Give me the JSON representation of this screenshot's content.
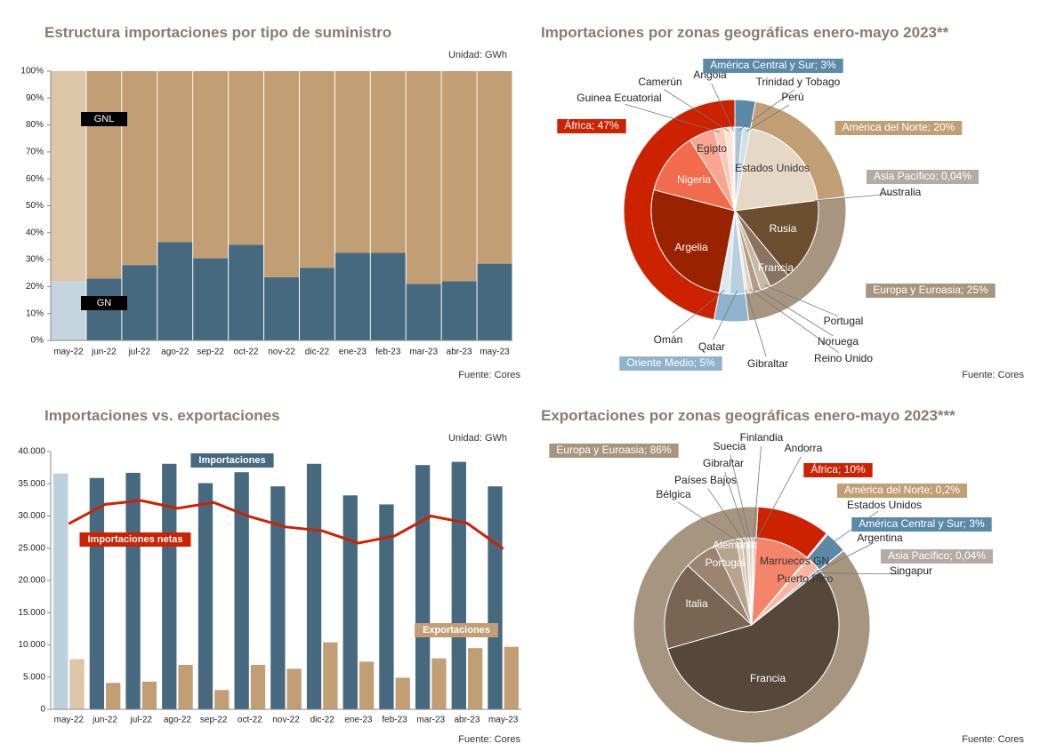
{
  "chart_data": [
    {
      "type": "bar",
      "stacked": true,
      "title": "Estructura importaciones por tipo de suministro",
      "unit": "Unidad: GWh",
      "source": "Fuente: Cores",
      "categories": [
        "may-22",
        "jun-22",
        "jul-22",
        "ago-22",
        "sep-22",
        "oct-22",
        "nov-22",
        "dic-22",
        "ene-23",
        "feb-23",
        "mar-23",
        "abr-23",
        "may-23"
      ],
      "series": [
        {
          "name": "GN",
          "color": "#46697f",
          "first_color": "#c5d5df",
          "values": [
            22,
            23,
            28,
            36.5,
            30.5,
            35.5,
            23.5,
            27,
            32.5,
            32.5,
            21,
            22,
            28.5
          ]
        },
        {
          "name": "GNL",
          "color": "#c29e75",
          "first_color": "#dcc5a8",
          "values": [
            78,
            77,
            72,
            63.5,
            69.5,
            64.5,
            76.5,
            73,
            67.5,
            67.5,
            79,
            78,
            71.5
          ]
        }
      ],
      "ylim": [
        0,
        100
      ],
      "yticks": [
        {
          "value": 0,
          "label": "0%"
        },
        {
          "value": 10,
          "label": "10%"
        },
        {
          "value": 20,
          "label": "20%"
        },
        {
          "value": 30,
          "label": "30%"
        },
        {
          "value": 40,
          "label": "40%"
        },
        {
          "value": 50,
          "label": "50%"
        },
        {
          "value": 60,
          "label": "60%"
        },
        {
          "value": 70,
          "label": "70%"
        },
        {
          "value": 80,
          "label": "80%"
        },
        {
          "value": 90,
          "label": "90%"
        },
        {
          "value": 100,
          "label": "100%"
        }
      ]
    },
    {
      "type": "pie",
      "title": "Importaciones por zonas geográficas enero-mayo 2023**",
      "source": "Fuente: Cores",
      "labels": [
        "América Central y Sur; 3%",
        "América del Norte; 20%",
        "Asia Pacífico; 0,04%",
        "Europa y Euroasia; 25%",
        "Oriente Medio; 5%",
        "África; 47%"
      ],
      "values": [
        3,
        20,
        0.04,
        25,
        5,
        47
      ],
      "colors": [
        "#5b8aa8",
        "#c29e75",
        "#b4aca4",
        "#a89580",
        "#8fb3cc",
        "#cc2200"
      ],
      "inner": {
        "labels": [
          "Trinidad y Tobago",
          "Perú",
          "Estados Unidos",
          "Australia",
          "Rusia",
          "Francia",
          "Portugal",
          "Noruega",
          "Reino Unido",
          "Gibraltar",
          "Qatar",
          "Omán",
          "Argelia",
          "Nigeria",
          "Egipto",
          "Guinea Ecuatorial",
          "Camerún",
          "Angola"
        ],
        "values": [
          1.5,
          1.5,
          20,
          0.04,
          16,
          4,
          2,
          1.5,
          1,
          0.5,
          3,
          2,
          26,
          12,
          5,
          2,
          1.5,
          0.5
        ],
        "colors": [
          "#a9c4d8",
          "#cfe0eb",
          "#e6d8c6",
          "#cccccc",
          "#6b4f30",
          "#8a7461",
          "#c8b8a6",
          "#b39c84",
          "#ddd0c2",
          "#ece4da",
          "#b7cfe0",
          "#dbe8f0",
          "#992200",
          "#f26b4d",
          "#f9a58f",
          "#fbc7b7",
          "#fde0d6",
          "#fff0ea"
        ]
      }
    },
    {
      "type": "bar_line",
      "title": "Importaciones vs. exportaciones",
      "unit": "Unidad: GWh",
      "source": "Fuente: Cores",
      "categories": [
        "may-22",
        "jun-22",
        "jul-22",
        "ago-22",
        "sep-22",
        "oct-22",
        "nov-22",
        "dic-22",
        "ene-23",
        "feb-23",
        "mar-23",
        "abr-23",
        "may-23"
      ],
      "series": [
        {
          "name": "Importaciones",
          "kind": "bar",
          "color": "#46697f",
          "first_color": "#bdd0dd",
          "values": [
            36600,
            35900,
            36700,
            38100,
            35100,
            36800,
            34600,
            38100,
            33200,
            31800,
            37900,
            38400,
            34600
          ]
        },
        {
          "name": "Exportaciones",
          "kind": "bar",
          "color": "#c29e75",
          "first_color": "#dcc5a8",
          "values": [
            7800,
            4100,
            4300,
            6900,
            3000,
            6900,
            6300,
            10400,
            7400,
            4900,
            7900,
            9500,
            9700
          ]
        },
        {
          "name": "Importaciones netas",
          "kind": "line",
          "color": "#cc2200",
          "values": [
            28800,
            31800,
            32400,
            31200,
            32100,
            29900,
            28300,
            27700,
            25800,
            26900,
            30000,
            28900,
            24900
          ]
        }
      ],
      "ylim": [
        0,
        40000
      ],
      "yticks": [
        0,
        {
          "value": 5000,
          "label": "5.000"
        },
        {
          "value": 10000,
          "label": "10.000"
        },
        {
          "value": 15000,
          "label": "15.000"
        },
        {
          "value": 20000,
          "label": "20.000"
        },
        {
          "value": 25000,
          "label": "25.000"
        },
        {
          "value": 30000,
          "label": "30.000"
        },
        {
          "value": 35000,
          "label": "35.000"
        },
        {
          "value": 40000,
          "label": "40.000"
        }
      ]
    },
    {
      "type": "pie",
      "title": "Exportaciones por zonas geográficas enero-mayo 2023***",
      "source": "Fuente: Cores",
      "labels": [
        "África; 10%",
        "América del Norte; 0,2%",
        "América Central y Sur; 3%",
        "Asia Pacífico; 0,04%",
        "Europa y Euroasia; 86%"
      ],
      "values": [
        10,
        0.2,
        3,
        0.04,
        86
      ],
      "colors": [
        "#cc2200",
        "#c29e75",
        "#5b8aa8",
        "#b4aca4",
        "#a89580"
      ],
      "inner": {
        "labels": [
          "Marruecos GN",
          "Estados Unidos",
          "Puerto Rico",
          "Argentina",
          "Singapur",
          "Francia",
          "Italia",
          "Portugal",
          "Alemania",
          "Bélgica",
          "Países Bajos",
          "Gibraltar",
          "Suecia",
          "Finlandia",
          "Andorra"
        ],
        "values": [
          10,
          0.2,
          2.5,
          0.5,
          0.04,
          55,
          16,
          6,
          4,
          1,
          0.8,
          0.5,
          0.5,
          0.5,
          0.3
        ],
        "colors": [
          "#f4846a",
          "#e6d8c6",
          "#f9b4a2",
          "#8fb3cc",
          "#cccccc",
          "#56473a",
          "#7a6552",
          "#9c8470",
          "#b8a48e",
          "#d8c9b8",
          "#c9b8a5",
          "#e6dcd0",
          "#d0c0ae",
          "#efe7de",
          "#dd3311"
        ]
      }
    }
  ]
}
